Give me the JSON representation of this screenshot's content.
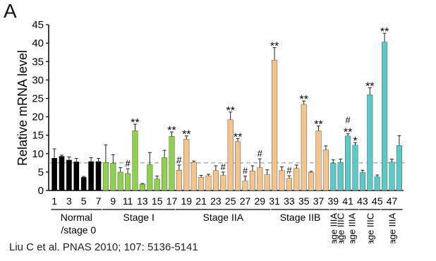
{
  "panel_label": "A",
  "citation": "Liu C et al. PNAS 2010; 107: 5136-5141",
  "colors": {
    "Normal": "#000000",
    "Stage I": "#8fd14f",
    "Stage IIA": "#f4c48c",
    "Stage IIB": "#f4c48c",
    "Stage III": "#5cc9c9",
    "reference": "#888888"
  },
  "chart_data": {
    "type": "bar",
    "title": "",
    "xlabel": "",
    "ylabel": "Relative mRNA level",
    "ylim": [
      0,
      45
    ],
    "yticks": [
      0,
      5,
      10,
      15,
      20,
      25,
      30,
      35,
      40,
      45
    ],
    "reference_line": 7.5,
    "xtick_labels": [
      "1",
      "3",
      "5",
      "7",
      "9",
      "11",
      "13",
      "15",
      "17",
      "19",
      "21",
      "23",
      "25",
      "27",
      "29",
      "31",
      "33",
      "35",
      "37",
      "39",
      "41",
      "43",
      "45",
      "47"
    ],
    "groups": [
      {
        "label": "Normal /stage 0",
        "start": 1,
        "end": 7,
        "color_key": "Normal"
      },
      {
        "label": "Stage I",
        "start": 8,
        "end": 17,
        "color_key": "Stage I"
      },
      {
        "label": "Stage IIA",
        "start": 18,
        "end": 30,
        "color_key": "Stage IIA"
      },
      {
        "label": "Stage IIB",
        "start": 31,
        "end": 38,
        "color_key": "Stage IIB"
      },
      {
        "label": "Stage IIIA",
        "start": 39,
        "end": 39,
        "color_key": "Stage III",
        "vertical": true
      },
      {
        "label": "Stage IIIC",
        "start": 40,
        "end": 40,
        "color_key": "Stage III",
        "vertical": true
      },
      {
        "label": "Stage IIIA",
        "start": 41,
        "end": 42,
        "color_key": "Stage III",
        "vertical": true
      },
      {
        "label": "Stage IIIC",
        "start": 43,
        "end": 45,
        "color_key": "Stage III",
        "vertical": true
      },
      {
        "label": "Stage IIIA",
        "start": 46,
        "end": 48,
        "color_key": "Stage III",
        "vertical": true
      }
    ],
    "categories": [
      "1",
      "2",
      "3",
      "4",
      "5",
      "6",
      "7",
      "8",
      "9",
      "10",
      "11",
      "12",
      "13",
      "14",
      "15",
      "16",
      "17",
      "18",
      "19",
      "20",
      "21",
      "22",
      "23",
      "24",
      "25",
      "26",
      "27",
      "28",
      "29",
      "30",
      "31",
      "32",
      "33",
      "34",
      "35",
      "36",
      "37",
      "38",
      "39",
      "40",
      "41",
      "42",
      "43",
      "44",
      "45",
      "46",
      "47",
      "48"
    ],
    "values": [
      8.8,
      9.3,
      8.3,
      7.8,
      3.6,
      7.9,
      7.9,
      7.6,
      7.4,
      5.0,
      4.6,
      16.2,
      1.7,
      7.0,
      3.1,
      8.9,
      14.7,
      5.5,
      13.9,
      7.6,
      3.6,
      4.0,
      5.4,
      4.1,
      19.2,
      13.3,
      2.6,
      5.3,
      6.2,
      4.3,
      35.4,
      5.4,
      3.3,
      6.0,
      23.4,
      4.9,
      16.2,
      11.0,
      7.4,
      7.6,
      14.8,
      12.3,
      4.9,
      26.0,
      3.7,
      40.3,
      7.7,
      12.2
    ],
    "errors": [
      2.5,
      0.3,
      0.8,
      0.9,
      0.2,
      1.0,
      0.8,
      4.8,
      2.3,
      1.2,
      1.3,
      1.8,
      0.2,
      3.3,
      0.8,
      2.0,
      1.2,
      1.4,
      0.9,
      0.4,
      0.5,
      0.4,
      1.3,
      0.9,
      2.1,
      0.8,
      1.3,
      1.4,
      2.4,
      1.3,
      3.4,
      1.0,
      0.7,
      0.9,
      0.9,
      0.3,
      1.3,
      1.1,
      0.9,
      0.9,
      0.6,
      0.7,
      0.6,
      1.9,
      0.5,
      2.4,
      0.8,
      2.7
    ],
    "annotations": [
      {
        "bar": 11,
        "text": "#"
      },
      {
        "bar": 12,
        "text": "**"
      },
      {
        "bar": 17,
        "text": "**"
      },
      {
        "bar": 18,
        "text": "#"
      },
      {
        "bar": 19,
        "text": "**"
      },
      {
        "bar": 24,
        "text": "#"
      },
      {
        "bar": 25,
        "text": "**"
      },
      {
        "bar": 26,
        "text": "**"
      },
      {
        "bar": 27,
        "text": "#"
      },
      {
        "bar": 29,
        "text": "#"
      },
      {
        "bar": 31,
        "text": "**"
      },
      {
        "bar": 33,
        "text": "#"
      },
      {
        "bar": 35,
        "text": "**"
      },
      {
        "bar": 37,
        "text": "**"
      },
      {
        "bar": 41,
        "text": "**"
      },
      {
        "bar": 41,
        "text": "#"
      },
      {
        "bar": 42,
        "text": "*"
      },
      {
        "bar": 44,
        "text": "**"
      },
      {
        "bar": 46,
        "text": "**"
      }
    ]
  }
}
